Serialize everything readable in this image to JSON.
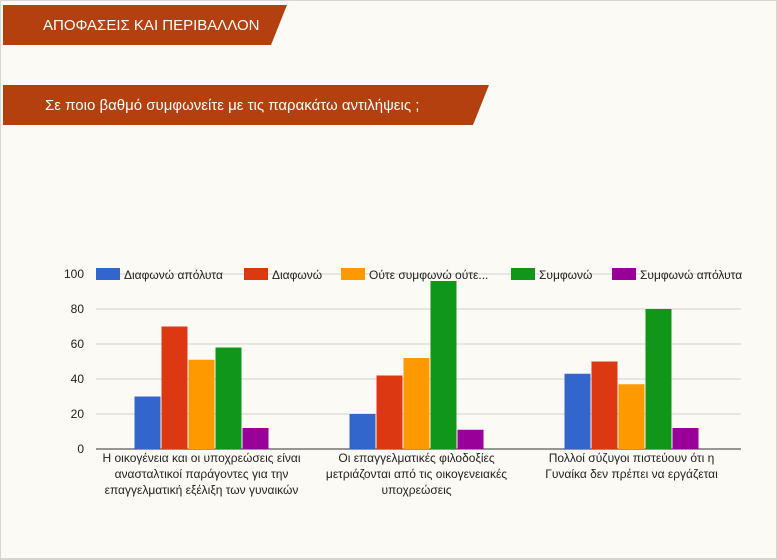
{
  "header": {
    "title": "ΑΠΟΦΑΣΕΙΣ ΚΑΙ ΠΕΡΙΒΑΛΛΟΝ"
  },
  "question": {
    "text": "Σε ποιο βαθμό συμφωνείτε με τις παρακάτω αντιλήψεις ;"
  },
  "chart_data": {
    "type": "bar",
    "title": "",
    "xlabel": "",
    "ylabel": "",
    "ylim": [
      0,
      100
    ],
    "yticks": [
      0,
      20,
      40,
      60,
      80,
      100
    ],
    "grid": true,
    "legend_position": "top",
    "categories": [
      [
        "Η οικογένεια και οι υποχρεώσεις είναι",
        "ανασταλτικοί παράγοντες για την",
        "επαγγελματική εξέλιξη των γυναικών"
      ],
      [
        "Οι επαγγελματικές φιλοδοξίες",
        "μετριάζονται από τις οικογενειακές",
        "υποχρεώσεις"
      ],
      [
        "Πολλοί σύζυγοι πιστεύουν ότι η",
        "Γυναίκα δεν πρέπει να εργάζεται"
      ]
    ],
    "series": [
      {
        "name": "Διαφωνώ απόλυτα",
        "color": "#3366cc",
        "values": [
          30,
          20,
          43
        ]
      },
      {
        "name": "Διαφωνώ",
        "color": "#dc3912",
        "values": [
          70,
          42,
          50
        ]
      },
      {
        "name": "Ούτε συμφωνώ ούτε...",
        "color": "#ff9900",
        "values": [
          51,
          52,
          37
        ]
      },
      {
        "name": "Συμφωνώ",
        "color": "#109618",
        "values": [
          58,
          96,
          80
        ]
      },
      {
        "name": "Συμφωνώ απόλυτα",
        "color": "#990099",
        "values": [
          12,
          11,
          12
        ]
      }
    ]
  }
}
